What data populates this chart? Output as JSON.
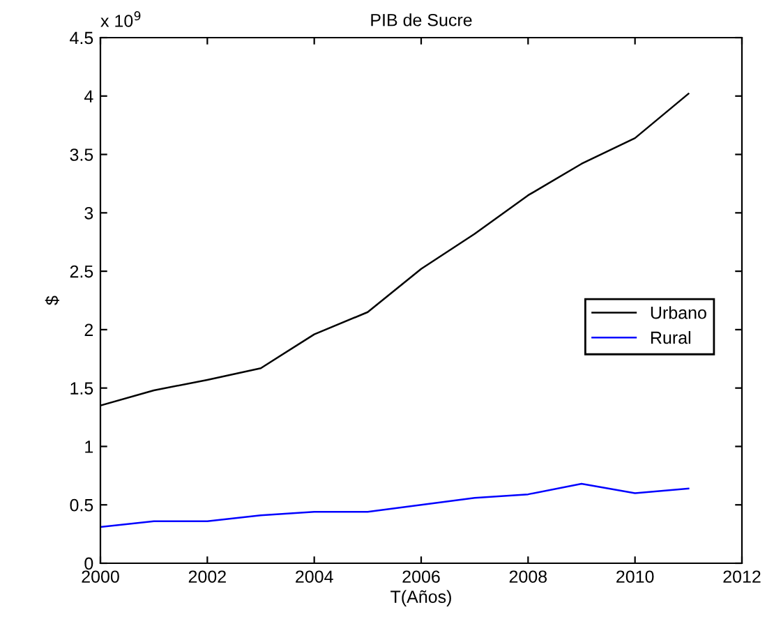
{
  "chart_data": {
    "type": "line",
    "title": "PIB de Sucre",
    "xlabel": "T(Años)",
    "ylabel": "$",
    "annotations": [
      "x 10$^{9}$"
    ],
    "x": [
      2000,
      2001,
      2002,
      2003,
      2004,
      2005,
      2006,
      2007,
      2008,
      2009,
      2010,
      2011
    ],
    "series": [
      {
        "name": "Urbano",
        "color": "#000000",
        "values": [
          1.35,
          1.48,
          1.57,
          1.67,
          1.96,
          2.15,
          2.52,
          2.82,
          3.15,
          3.42,
          3.64,
          4.02
        ]
      },
      {
        "name": "Rural",
        "color": "#0000ff",
        "values": [
          0.31,
          0.36,
          0.36,
          0.41,
          0.44,
          0.44,
          0.5,
          0.56,
          0.59,
          0.68,
          0.6,
          0.64
        ]
      }
    ],
    "xlim": [
      2000,
      2012
    ],
    "xticks": [
      2000,
      2002,
      2004,
      2006,
      2008,
      2010,
      2012
    ],
    "ylim": [
      0,
      4.5
    ],
    "yticks": [
      0,
      0.5,
      1,
      1.5,
      2,
      2.5,
      3,
      3.5,
      4,
      4.5
    ],
    "grid": false,
    "legend": "right",
    "marker": "none",
    "line_style": "solid"
  }
}
